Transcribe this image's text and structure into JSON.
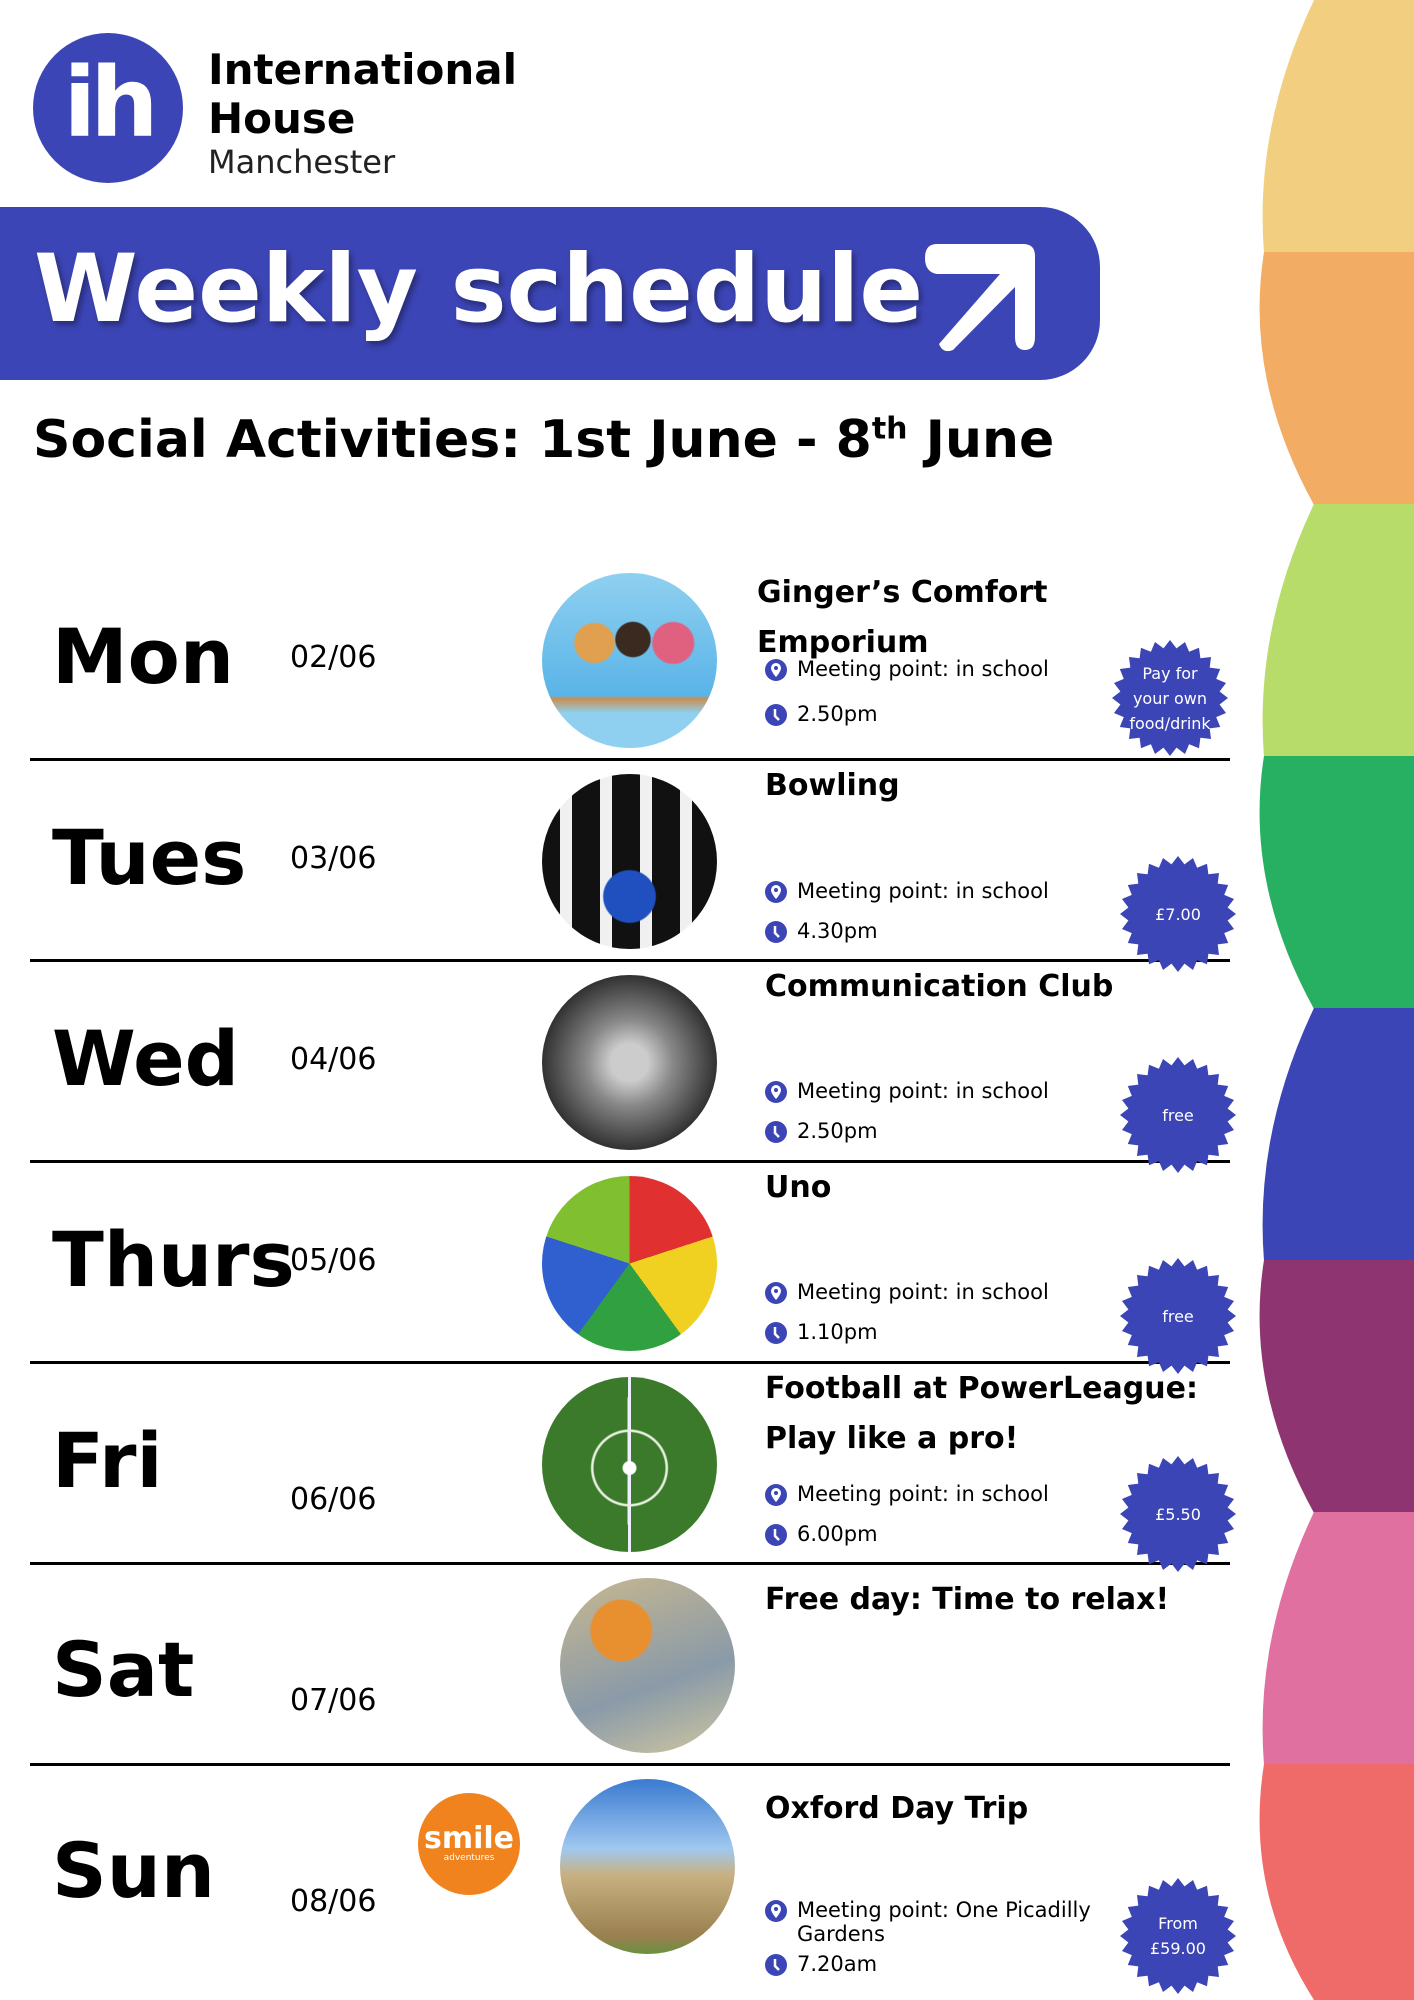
{
  "brand": {
    "logo_mark": "ih",
    "line1": "International",
    "line2": "House",
    "line3": "Manchester",
    "accent": "#3c45b5"
  },
  "banner": {
    "title": "Weekly schedule",
    "icon": "arrow-up-right-icon"
  },
  "subtitle": {
    "main": "Social Activities: 1st June - 8",
    "sup": "th",
    "end": " June"
  },
  "wave_colors": [
    "#F2CF80",
    "#F2AC64",
    "#B8DC6A",
    "#28B062",
    "#3C45B5",
    "#8E3470",
    "#E070A0",
    "#EF6B69"
  ],
  "days": [
    {
      "day": "Mon",
      "date": "02/06",
      "title": "Ginger’s Comfort Emporium",
      "meeting": "Meeting point: in school",
      "time": "2.50pm",
      "badge": "Pay for your own food/drink",
      "photo": "ice-cream"
    },
    {
      "day": "Tues",
      "date": "03/06",
      "title": "Bowling",
      "meeting": "Meeting point: in school",
      "time": "4.30pm",
      "badge": "£7.00",
      "photo": "bowling"
    },
    {
      "day": "Wed",
      "date": "04/06",
      "title": "Communication Club",
      "meeting": "Meeting point: in school",
      "time": "2.50pm",
      "badge": "free",
      "photo": "group"
    },
    {
      "day": "Thurs",
      "date": "05/06",
      "title": "Uno",
      "meeting": "Meeting point: in school",
      "time": "1.10pm",
      "badge": "free",
      "photo": "uno-cards"
    },
    {
      "day": "Fri",
      "date": "06/06",
      "title": "Football at PowerLeague: Play like a pro!",
      "meeting": "Meeting point: in school",
      "time": "6.00pm",
      "badge": "£5.50",
      "photo": "football-pitch"
    },
    {
      "day": "Sat",
      "date": "07/06",
      "title": "Free day: Time to relax!",
      "photo": "relax"
    },
    {
      "day": "Sun",
      "date": "08/06",
      "title": "Oxford Day Trip",
      "meeting": "Meeting point: One Picadilly Gardens",
      "time": "7.20am",
      "badge": "From £59.00",
      "photo": "oxford",
      "partner_logo": {
        "main": "smile",
        "sub": "adventures"
      }
    }
  ]
}
